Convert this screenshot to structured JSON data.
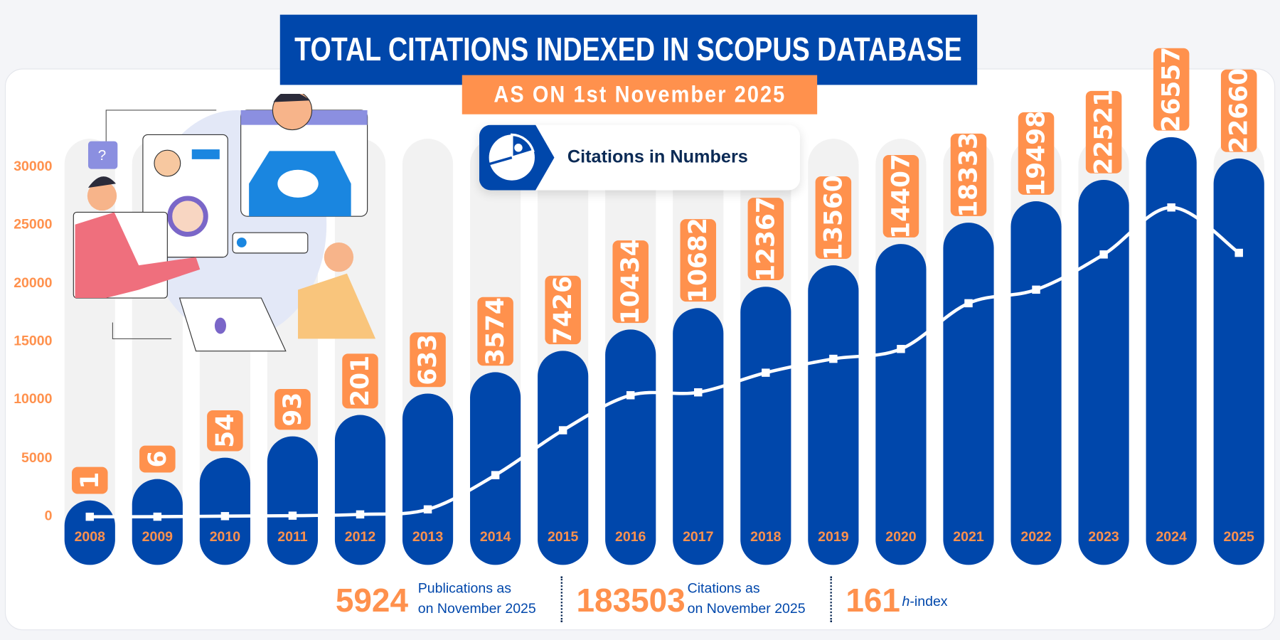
{
  "header": {
    "title": "TOTAL CITATIONS INDEXED IN SCOPUS DATABASE",
    "subtitle": "AS ON 1st November 2025",
    "badge": "Citations in Numbers"
  },
  "chart_data": {
    "type": "bar",
    "categories": [
      "2008",
      "2009",
      "2010",
      "2011",
      "2012",
      "2013",
      "2014",
      "2015",
      "2016",
      "2017",
      "2018",
      "2019",
      "2020",
      "2021",
      "2022",
      "2023",
      "2024",
      "2025"
    ],
    "values": [
      1,
      6,
      54,
      93,
      201,
      633,
      3574,
      7426,
      10434,
      10682,
      12367,
      13560,
      14407,
      18333,
      19498,
      22521,
      26557,
      22660
    ],
    "ylim": [
      0,
      30000
    ],
    "yticks": [
      "0",
      "5000",
      "10000",
      "15000",
      "20000",
      "25000",
      "30000"
    ],
    "colors": {
      "bar": "#0047ab",
      "label": "#ff914d",
      "line": "#ffffff",
      "track": "#f2f2f2"
    }
  },
  "footer": {
    "publications": {
      "value": "5924",
      "label1": "Publications as",
      "label2": "on November 2025"
    },
    "citations": {
      "value": "183503",
      "label1": "Citations as",
      "label2": "on November 2025"
    },
    "hindex": {
      "value": "161",
      "label_italic": "h",
      "label_rest": "-index"
    }
  }
}
